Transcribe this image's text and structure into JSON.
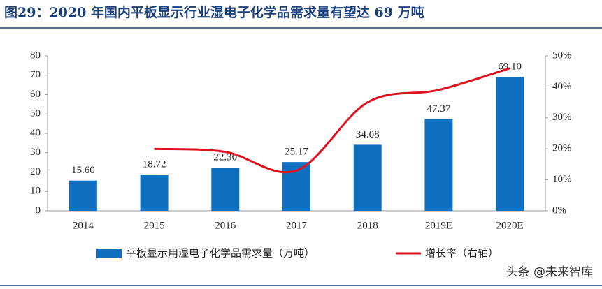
{
  "chart_data": {
    "type": "bar",
    "title": "图29：2020 年国内平板显示行业湿电子化学品需求量有望达 69 万吨",
    "categories": [
      "2014",
      "2015",
      "2016",
      "2017",
      "2018",
      "2019E",
      "2020E"
    ],
    "series": [
      {
        "name": "平板显示用湿电子化学品需求量（万吨）",
        "type": "bar",
        "color": "#0f6fc0",
        "values": [
          15.6,
          18.72,
          22.3,
          25.17,
          34.08,
          47.37,
          69.1
        ],
        "value_labels": [
          "15.60",
          "18.72",
          "22.30",
          "25.17",
          "34.08",
          "47.37",
          "69.10"
        ]
      },
      {
        "name": "增长率（右轴）",
        "type": "line",
        "axis": "y2",
        "color": "#e0121f",
        "values": [
          null,
          20,
          19,
          13,
          35,
          39,
          46
        ]
      }
    ],
    "ylim": [
      0,
      80
    ],
    "yticks": [
      0,
      10,
      20,
      30,
      40,
      50,
      60,
      70,
      80
    ],
    "y2lim": [
      0,
      50
    ],
    "y2ticks": [
      {
        "value": 0,
        "label": "0%"
      },
      {
        "value": 10,
        "label": "10%"
      },
      {
        "value": 20,
        "label": "20%"
      },
      {
        "value": 30,
        "label": "30%"
      },
      {
        "value": 40,
        "label": "40%"
      },
      {
        "value": 50,
        "label": "50%"
      }
    ],
    "grid": false,
    "legend": "bottom",
    "watermark": "头条 @未来智库"
  }
}
